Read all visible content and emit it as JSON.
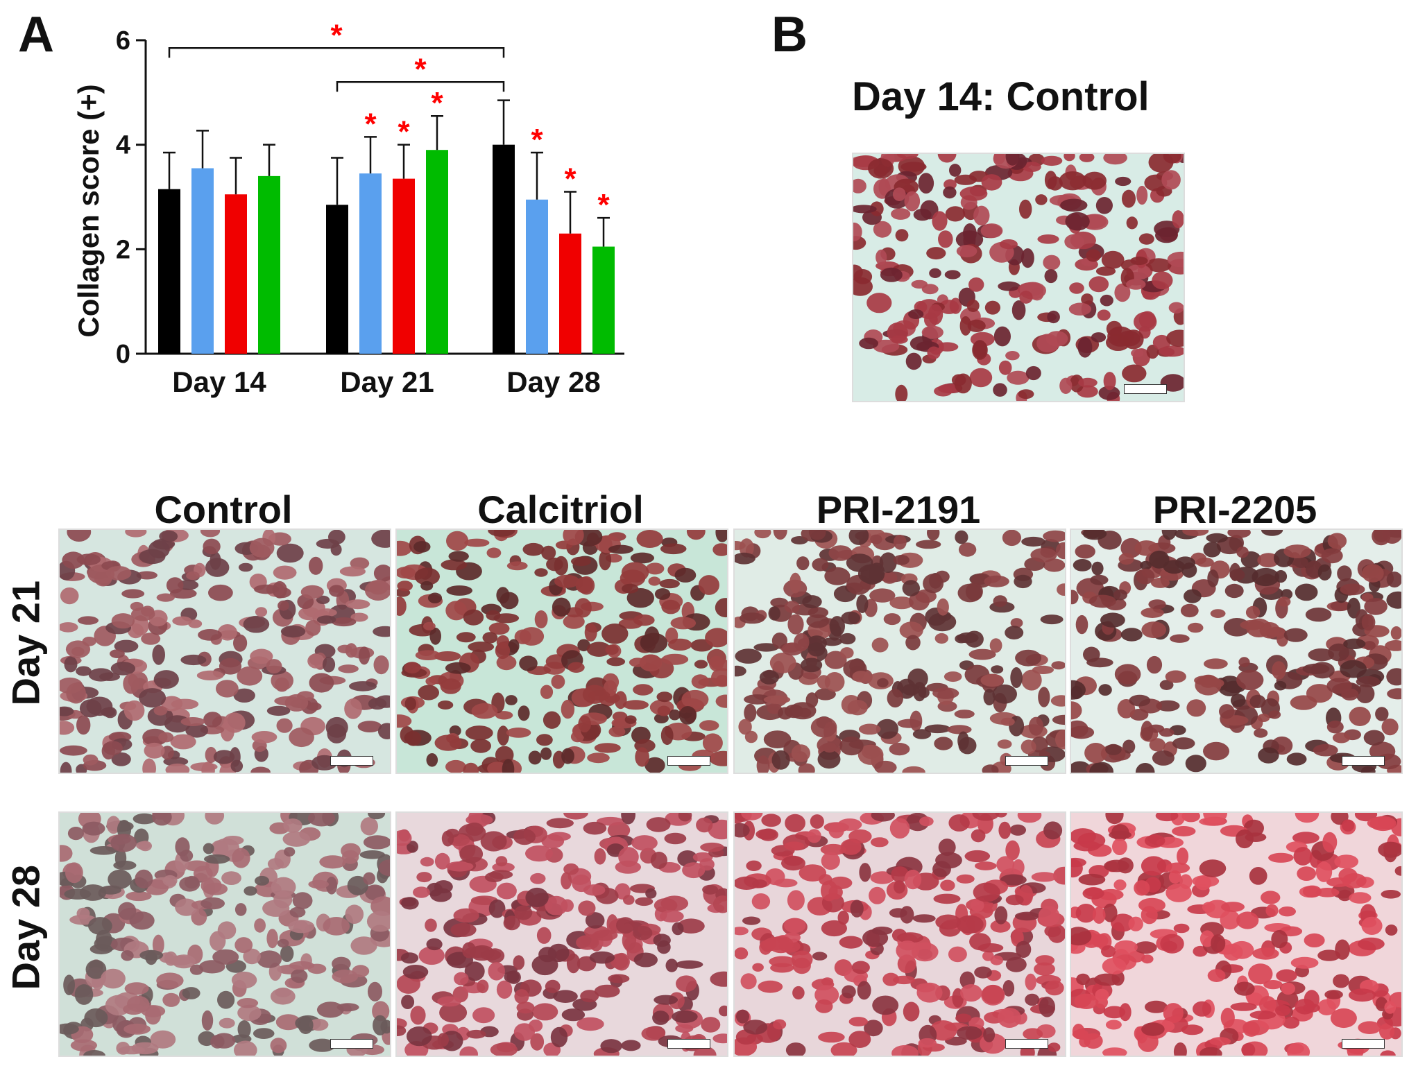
{
  "panel_a": {
    "letter": "A"
  },
  "panel_b": {
    "letter": "B",
    "title": "Day 14: Control"
  },
  "chart_data": {
    "type": "bar",
    "ylabel": "Collagen score (+)",
    "xlabel": "",
    "ylim": [
      0,
      6
    ],
    "yticks": [
      0,
      2,
      4,
      6
    ],
    "categories": [
      "Day 14",
      "Day 21",
      "Day 28"
    ],
    "series": [
      {
        "color": "#000000",
        "values": [
          3.15,
          2.85,
          4.0
        ],
        "errors": [
          0.7,
          0.9,
          0.85
        ],
        "significant": [
          false,
          false,
          false
        ]
      },
      {
        "color": "#5aa0ee",
        "values": [
          3.55,
          3.45,
          2.95
        ],
        "errors": [
          0.72,
          0.7,
          0.9
        ],
        "significant": [
          false,
          true,
          true
        ]
      },
      {
        "color": "#f00000",
        "values": [
          3.05,
          3.35,
          2.3
        ],
        "errors": [
          0.7,
          0.65,
          0.8
        ],
        "significant": [
          false,
          true,
          true
        ]
      },
      {
        "color": "#00bb00",
        "values": [
          3.4,
          3.9,
          2.05
        ],
        "errors": [
          0.6,
          0.65,
          0.55
        ],
        "significant": [
          false,
          true,
          true
        ]
      }
    ],
    "significance_brackets": [
      {
        "from_category": "Day 14",
        "to_category": "Day 28",
        "level": 5.85,
        "label": "*"
      },
      {
        "from_category": "Day 21",
        "to_category": "Day 28",
        "level": 5.2,
        "label": "*"
      }
    ],
    "asterisk_color": "#ff0000"
  },
  "grid": {
    "columns": [
      "Control",
      "Calcitriol",
      "PRI-2191",
      "PRI-2205"
    ],
    "rows": [
      "Day 21",
      "Day 28"
    ]
  }
}
